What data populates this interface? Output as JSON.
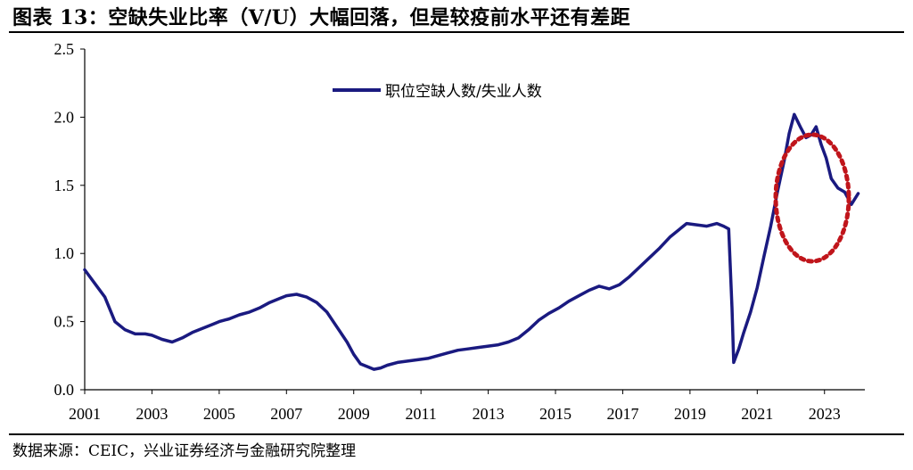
{
  "title": "图表 13：空缺失业比率（V/U）大幅回落，但是较疫前水平还有差距",
  "source": "数据来源：CEIC，兴业证券经济与金融研究院整理",
  "colors": {
    "series": "#1a1a80",
    "ellipse": "#c0151b",
    "axis": "#000000"
  },
  "chart_data": {
    "type": "line",
    "title": "",
    "xlabel": "",
    "ylabel": "",
    "xlim": [
      2001,
      2024.2
    ],
    "ylim": [
      0.0,
      2.5
    ],
    "x_ticks": [
      "2001",
      "2003",
      "2005",
      "2007",
      "2009",
      "2011",
      "2013",
      "2015",
      "2017",
      "2019",
      "2021",
      "2023"
    ],
    "y_ticks": [
      "0.0",
      "0.5",
      "1.0",
      "1.5",
      "2.0",
      "2.5"
    ],
    "legend_position": "top-center",
    "series": [
      {
        "name": "职位空缺人数/失业人数",
        "x": [
          2001.0,
          2001.3,
          2001.6,
          2001.9,
          2002.2,
          2002.5,
          2002.8,
          2003.0,
          2003.3,
          2003.6,
          2003.9,
          2004.2,
          2004.5,
          2004.8,
          2005.0,
          2005.3,
          2005.6,
          2005.9,
          2006.2,
          2006.5,
          2006.8,
          2007.0,
          2007.3,
          2007.6,
          2007.9,
          2008.2,
          2008.5,
          2008.8,
          2009.0,
          2009.2,
          2009.4,
          2009.6,
          2009.8,
          2010.0,
          2010.3,
          2010.6,
          2010.9,
          2011.2,
          2011.5,
          2011.8,
          2012.1,
          2012.4,
          2012.7,
          2013.0,
          2013.3,
          2013.6,
          2013.9,
          2014.2,
          2014.5,
          2014.8,
          2015.1,
          2015.4,
          2015.7,
          2016.0,
          2016.3,
          2016.6,
          2016.9,
          2017.2,
          2017.5,
          2017.8,
          2018.1,
          2018.4,
          2018.7,
          2018.9,
          2019.2,
          2019.5,
          2019.8,
          2020.0,
          2020.15,
          2020.25,
          2020.3,
          2020.45,
          2020.6,
          2020.8,
          2021.0,
          2021.2,
          2021.4,
          2021.6,
          2021.8,
          2021.95,
          2022.1,
          2022.3,
          2022.45,
          2022.6,
          2022.75,
          2022.9,
          2023.05,
          2023.2,
          2023.4,
          2023.6,
          2023.8,
          2024.0
        ],
        "values": [
          0.88,
          0.78,
          0.68,
          0.5,
          0.44,
          0.41,
          0.41,
          0.4,
          0.37,
          0.35,
          0.38,
          0.42,
          0.45,
          0.48,
          0.5,
          0.52,
          0.55,
          0.57,
          0.6,
          0.64,
          0.67,
          0.69,
          0.7,
          0.68,
          0.64,
          0.57,
          0.46,
          0.35,
          0.26,
          0.19,
          0.17,
          0.15,
          0.16,
          0.18,
          0.2,
          0.21,
          0.22,
          0.23,
          0.25,
          0.27,
          0.29,
          0.3,
          0.31,
          0.32,
          0.33,
          0.35,
          0.38,
          0.44,
          0.51,
          0.56,
          0.6,
          0.65,
          0.69,
          0.73,
          0.76,
          0.74,
          0.77,
          0.83,
          0.9,
          0.97,
          1.04,
          1.12,
          1.18,
          1.22,
          1.21,
          1.2,
          1.22,
          1.2,
          1.18,
          0.6,
          0.2,
          0.3,
          0.42,
          0.57,
          0.75,
          0.98,
          1.2,
          1.45,
          1.68,
          1.88,
          2.02,
          1.92,
          1.85,
          1.87,
          1.93,
          1.8,
          1.7,
          1.55,
          1.48,
          1.45,
          1.36,
          1.44
        ]
      }
    ]
  }
}
